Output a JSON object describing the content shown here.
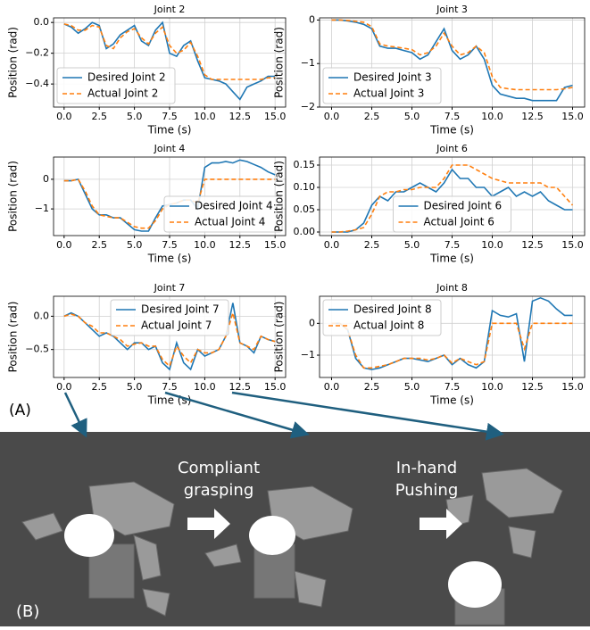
{
  "chart_data": [
    {
      "type": "line",
      "title": "Joint 2",
      "xlabel": "Time (s)",
      "ylabel": "Position (rad)",
      "grid": true,
      "legend": "lower left",
      "x": [
        0,
        0.5,
        1,
        1.5,
        2,
        2.5,
        3,
        3.5,
        4,
        4.5,
        5,
        5.5,
        6,
        6.5,
        7,
        7.5,
        8,
        8.5,
        9,
        9.5,
        10,
        10.5,
        11,
        11.5,
        12,
        12.5,
        13,
        13.5,
        14,
        14.5,
        15
      ],
      "xlim": [
        -0.75,
        15.75
      ],
      "xticks": [
        {
          "value": 0,
          "label": "0.0"
        },
        2.5,
        {
          "value": 5,
          "label": "5.0"
        },
        7.5,
        {
          "value": 10,
          "label": "10.0"
        },
        12.5,
        {
          "value": 15,
          "label": "15.0"
        }
      ],
      "ylim": [
        -0.55,
        0.03
      ],
      "yticks": [
        {
          "value": 0,
          "label": "0.0"
        },
        {
          "value": -0.2,
          "label": "−0.2"
        },
        {
          "value": -0.4,
          "label": "−0.4"
        }
      ],
      "series": [
        {
          "name": "Desired Joint 2",
          "color": "#1f77b4",
          "dash": false,
          "values": [
            -0.01,
            -0.03,
            -0.07,
            -0.04,
            0.0,
            -0.02,
            -0.17,
            -0.14,
            -0.08,
            -0.05,
            -0.02,
            -0.12,
            -0.15,
            -0.05,
            0.0,
            -0.2,
            -0.22,
            -0.15,
            -0.12,
            -0.25,
            -0.36,
            -0.37,
            -0.38,
            -0.4,
            -0.45,
            -0.5,
            -0.42,
            -0.4,
            -0.38,
            -0.35,
            -0.35
          ]
        },
        {
          "name": "Actual Joint 2",
          "color": "#ff7f0e",
          "dash": true,
          "values": [
            -0.01,
            -0.02,
            -0.05,
            -0.05,
            -0.02,
            -0.03,
            -0.15,
            -0.17,
            -0.1,
            -0.06,
            -0.04,
            -0.1,
            -0.14,
            -0.07,
            -0.03,
            -0.15,
            -0.2,
            -0.18,
            -0.13,
            -0.22,
            -0.34,
            -0.37,
            -0.37,
            -0.37,
            -0.37,
            -0.37,
            -0.37,
            -0.37,
            -0.37,
            -0.36,
            -0.36
          ]
        }
      ]
    },
    {
      "type": "line",
      "title": "Joint 3",
      "xlabel": "Time (s)",
      "ylabel": "Position (rad)",
      "grid": true,
      "legend": "lower left",
      "x": [
        0,
        0.5,
        1,
        1.5,
        2,
        2.5,
        3,
        3.5,
        4,
        4.5,
        5,
        5.5,
        6,
        6.5,
        7,
        7.5,
        8,
        8.5,
        9,
        9.5,
        10,
        10.5,
        11,
        11.5,
        12,
        12.5,
        13,
        13.5,
        14,
        14.5,
        15
      ],
      "xlim": [
        -0.75,
        15.75
      ],
      "xticks": [
        {
          "value": 0,
          "label": "0.0"
        },
        2.5,
        {
          "value": 5,
          "label": "5.0"
        },
        7.5,
        {
          "value": 10,
          "label": "10.0"
        },
        12.5,
        {
          "value": 15,
          "label": "15.0"
        }
      ],
      "ylim": [
        -2.0,
        0.05
      ],
      "yticks": [
        0,
        {
          "value": -1,
          "label": "−1"
        },
        {
          "value": -2,
          "label": "−2"
        }
      ],
      "series": [
        {
          "name": "Desired Joint 3",
          "color": "#1f77b4",
          "dash": false,
          "values": [
            0,
            0,
            -0.02,
            -0.05,
            -0.1,
            -0.2,
            -0.6,
            -0.65,
            -0.65,
            -0.7,
            -0.75,
            -0.9,
            -0.8,
            -0.5,
            -0.2,
            -0.7,
            -0.9,
            -0.8,
            -0.6,
            -0.9,
            -1.5,
            -1.7,
            -1.75,
            -1.8,
            -1.8,
            -1.85,
            -1.85,
            -1.85,
            -1.85,
            -1.55,
            -1.5
          ]
        },
        {
          "name": "Actual Joint 3",
          "color": "#ff7f0e",
          "dash": true,
          "values": [
            0,
            0,
            -0.01,
            -0.03,
            -0.05,
            -0.15,
            -0.55,
            -0.6,
            -0.62,
            -0.65,
            -0.68,
            -0.8,
            -0.75,
            -0.6,
            -0.3,
            -0.6,
            -0.8,
            -0.75,
            -0.6,
            -0.75,
            -1.3,
            -1.55,
            -1.58,
            -1.6,
            -1.6,
            -1.6,
            -1.6,
            -1.6,
            -1.6,
            -1.58,
            -1.55
          ]
        }
      ]
    },
    {
      "type": "line",
      "title": "Joint 4",
      "xlabel": "Time (s)",
      "ylabel": "Position (rad)",
      "grid": true,
      "legend": "lower right",
      "x": [
        0,
        0.5,
        1,
        1.5,
        2,
        2.5,
        3,
        3.5,
        4,
        4.5,
        5,
        5.5,
        6,
        6.5,
        7,
        7.5,
        8,
        8.5,
        9,
        9.5,
        10,
        10.5,
        11,
        11.5,
        12,
        12.5,
        13,
        13.5,
        14,
        14.5,
        15
      ],
      "xlim": [
        -0.75,
        15.75
      ],
      "xticks": [
        {
          "value": 0,
          "label": "0.0"
        },
        2.5,
        {
          "value": 5,
          "label": "5.0"
        },
        7.5,
        {
          "value": 10,
          "label": "10.0"
        },
        12.5,
        {
          "value": 15,
          "label": "15.0"
        }
      ],
      "ylim": [
        -1.9,
        0.75
      ],
      "yticks": [
        0,
        {
          "value": -1,
          "label": "−1"
        }
      ],
      "series": [
        {
          "name": "Desired Joint 4",
          "color": "#1f77b4",
          "dash": false,
          "values": [
            -0.05,
            -0.05,
            0,
            -0.5,
            -1.0,
            -1.2,
            -1.2,
            -1.3,
            -1.3,
            -1.5,
            -1.7,
            -1.75,
            -1.75,
            -1.3,
            -0.9,
            -0.85,
            -0.8,
            -0.7,
            -0.7,
            -1.0,
            0.4,
            0.55,
            0.55,
            0.6,
            0.55,
            0.65,
            0.6,
            0.5,
            0.4,
            0.25,
            0.15
          ]
        },
        {
          "name": "Actual Joint 4",
          "color": "#ff7f0e",
          "dash": true,
          "values": [
            -0.05,
            -0.05,
            0,
            -0.4,
            -0.9,
            -1.2,
            -1.25,
            -1.3,
            -1.3,
            -1.45,
            -1.6,
            -1.65,
            -1.65,
            -1.4,
            -1.0,
            -0.85,
            -0.8,
            -0.7,
            -0.7,
            -0.8,
            0,
            0,
            0,
            0,
            0,
            0,
            0,
            0,
            0,
            0,
            0
          ]
        }
      ]
    },
    {
      "type": "line",
      "title": "Joint 6",
      "xlabel": "Time (s)",
      "ylabel": "Position (rad)",
      "grid": true,
      "legend": "lower center",
      "x": [
        0,
        0.5,
        1,
        1.5,
        2,
        2.5,
        3,
        3.5,
        4,
        4.5,
        5,
        5.5,
        6,
        6.5,
        7,
        7.5,
        8,
        8.5,
        9,
        9.5,
        10,
        10.5,
        11,
        11.5,
        12,
        12.5,
        13,
        13.5,
        14,
        14.5,
        15
      ],
      "xlim": [
        -0.75,
        15.75
      ],
      "xticks": [
        {
          "value": 0,
          "label": "0.0"
        },
        2.5,
        {
          "value": 5,
          "label": "5.0"
        },
        7.5,
        {
          "value": 10,
          "label": "10.0"
        },
        12.5,
        {
          "value": 15,
          "label": "15.0"
        }
      ],
      "ylim": [
        -0.008,
        0.168
      ],
      "yticks": [
        {
          "value": 0,
          "label": "0.00"
        },
        0.05,
        {
          "value": 0.1,
          "label": "0.10"
        },
        0.15
      ],
      "series": [
        {
          "name": "Desired Joint 6",
          "color": "#1f77b4",
          "dash": false,
          "values": [
            0,
            0,
            0,
            0.005,
            0.02,
            0.06,
            0.08,
            0.07,
            0.09,
            0.09,
            0.1,
            0.11,
            0.1,
            0.09,
            0.11,
            0.14,
            0.12,
            0.12,
            0.1,
            0.1,
            0.08,
            0.09,
            0.1,
            0.08,
            0.09,
            0.08,
            0.09,
            0.07,
            0.06,
            0.05,
            0.05
          ]
        },
        {
          "name": "Actual Joint 6",
          "color": "#ff7f0e",
          "dash": true,
          "values": [
            0,
            0,
            0.002,
            0.005,
            0.01,
            0.04,
            0.08,
            0.09,
            0.09,
            0.095,
            0.095,
            0.1,
            0.1,
            0.1,
            0.12,
            0.15,
            0.15,
            0.15,
            0.14,
            0.13,
            0.12,
            0.115,
            0.11,
            0.11,
            0.11,
            0.11,
            0.11,
            0.1,
            0.1,
            0.08,
            0.06
          ]
        }
      ]
    },
    {
      "type": "line",
      "title": "Joint 7",
      "xlabel": "Time (s)",
      "ylabel": "Position (rad)",
      "grid": true,
      "legend": "upper center",
      "x": [
        0,
        0.5,
        1,
        1.5,
        2,
        2.5,
        3,
        3.5,
        4,
        4.5,
        5,
        5.5,
        6,
        6.5,
        7,
        7.5,
        8,
        8.5,
        9,
        9.5,
        10,
        10.5,
        11,
        11.5,
        12,
        12.5,
        13,
        13.5,
        14,
        14.5,
        15
      ],
      "xlim": [
        -0.75,
        15.75
      ],
      "xticks": [
        {
          "value": 0,
          "label": "0.0"
        },
        2.5,
        {
          "value": 5,
          "label": "5.0"
        },
        7.5,
        {
          "value": 10,
          "label": "10.0"
        },
        12.5,
        {
          "value": 15,
          "label": "15.0"
        }
      ],
      "ylim": [
        -0.92,
        0.3
      ],
      "yticks": [
        {
          "value": 0,
          "label": "0.0"
        },
        {
          "value": -0.5,
          "label": "−0.5"
        }
      ],
      "series": [
        {
          "name": "Desired Joint 7",
          "color": "#1f77b4",
          "dash": false,
          "values": [
            0.0,
            0.05,
            0.0,
            -0.1,
            -0.2,
            -0.3,
            -0.25,
            -0.3,
            -0.4,
            -0.5,
            -0.4,
            -0.4,
            -0.5,
            -0.45,
            -0.7,
            -0.8,
            -0.4,
            -0.7,
            -0.8,
            -0.5,
            -0.6,
            -0.55,
            -0.5,
            -0.3,
            0.2,
            -0.4,
            -0.45,
            -0.55,
            -0.3,
            -0.35,
            -0.38
          ]
        },
        {
          "name": "Actual Joint 7",
          "color": "#ff7f0e",
          "dash": true,
          "values": [
            0.0,
            0.03,
            0.0,
            -0.1,
            -0.15,
            -0.25,
            -0.25,
            -0.3,
            -0.35,
            -0.45,
            -0.42,
            -0.4,
            -0.45,
            -0.45,
            -0.65,
            -0.75,
            -0.45,
            -0.6,
            -0.7,
            -0.5,
            -0.55,
            -0.55,
            -0.5,
            -0.3,
            0.05,
            -0.4,
            -0.45,
            -0.5,
            -0.3,
            -0.35,
            -0.38
          ]
        }
      ]
    },
    {
      "type": "line",
      "title": "Joint 8",
      "xlabel": "Time (s)",
      "ylabel": "Position (rad)",
      "grid": true,
      "legend": "upper left",
      "x": [
        0,
        0.5,
        1,
        1.5,
        2,
        2.5,
        3,
        3.5,
        4,
        4.5,
        5,
        5.5,
        6,
        6.5,
        7,
        7.5,
        8,
        8.5,
        9,
        9.5,
        10,
        10.5,
        11,
        11.5,
        12,
        12.5,
        13,
        13.5,
        14,
        14.5,
        15
      ],
      "xlim": [
        -0.75,
        15.75
      ],
      "xticks": [
        {
          "value": 0,
          "label": "0.0"
        },
        2.5,
        {
          "value": 5,
          "label": "5.0"
        },
        7.5,
        {
          "value": 10,
          "label": "10.0"
        },
        12.5,
        {
          "value": 15,
          "label": "15.0"
        }
      ],
      "ylim": [
        -1.7,
        0.85
      ],
      "yticks": [
        0,
        {
          "value": -1,
          "label": "−1"
        }
      ],
      "series": [
        {
          "name": "Desired Joint 8",
          "color": "#1f77b4",
          "dash": false,
          "values": [
            0,
            0,
            -0.2,
            -1.1,
            -1.4,
            -1.45,
            -1.4,
            -1.3,
            -1.2,
            -1.1,
            -1.1,
            -1.15,
            -1.2,
            -1.1,
            -1.0,
            -1.3,
            -1.1,
            -1.3,
            -1.4,
            -1.2,
            0.4,
            0.25,
            0.2,
            0.3,
            -1.2,
            0.7,
            0.8,
            0.7,
            0.45,
            0.25,
            0.25
          ]
        },
        {
          "name": "Actual Joint 8",
          "color": "#ff7f0e",
          "dash": true,
          "values": [
            0,
            0,
            -0.2,
            -1.0,
            -1.4,
            -1.4,
            -1.35,
            -1.3,
            -1.2,
            -1.1,
            -1.1,
            -1.1,
            -1.15,
            -1.1,
            -1.0,
            -1.25,
            -1.1,
            -1.2,
            -1.3,
            -1.2,
            0,
            0,
            0,
            0,
            -0.8,
            0,
            0,
            0,
            0,
            0,
            0
          ]
        }
      ]
    }
  ],
  "panel_a": "(A)",
  "panel_b": "(B)",
  "stage_1": [
    "Compliant",
    "grasping"
  ],
  "stage_2": [
    "In-hand",
    "Pushing"
  ]
}
